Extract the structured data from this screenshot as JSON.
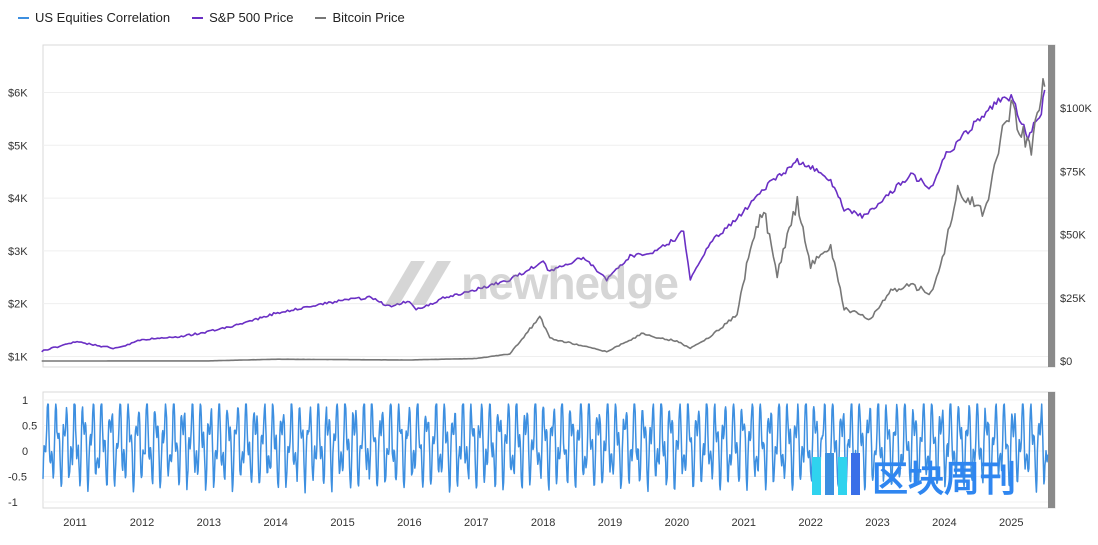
{
  "legend": [
    {
      "label": "US Equities Correlation",
      "color": "#3d8fe0"
    },
    {
      "label": "S&P 500 Price",
      "color": "#6a2fc4"
    },
    {
      "label": "Bitcoin Price",
      "color": "#777777"
    }
  ],
  "watermark": {
    "text": "newhedge",
    "text2": "区块周刊"
  },
  "chart_data": [
    {
      "type": "line",
      "title": "",
      "y_left_ticks": [
        "$1K",
        "$2K",
        "$3K",
        "$4K",
        "$5K",
        "$6K"
      ],
      "y_right_ticks": [
        "$0",
        "$25K",
        "$50K",
        "$75K",
        "$100K"
      ],
      "y_left_range": [
        800,
        6900
      ],
      "y_right_range": [
        0,
        125000
      ],
      "series": [
        {
          "name": "S&P 500 Price",
          "axis": "left",
          "color": "#6a2fc4",
          "x": [
            2010.5,
            2011.0,
            2011.6,
            2012.0,
            2012.5,
            2013.0,
            2013.5,
            2014.0,
            2014.5,
            2015.0,
            2015.4,
            2015.7,
            2016.0,
            2016.1,
            2016.5,
            2017.0,
            2017.5,
            2018.0,
            2018.1,
            2018.6,
            2018.95,
            2019.3,
            2019.7,
            2020.0,
            2020.1,
            2020.2,
            2020.5,
            2020.9,
            2021.3,
            2021.8,
            2022.0,
            2022.3,
            2022.5,
            2022.8,
            2023.1,
            2023.5,
            2023.8,
            2024.0,
            2024.5,
            2024.9,
            2025.0,
            2025.25,
            2025.45,
            2025.5
          ],
          "values": [
            1100,
            1280,
            1150,
            1320,
            1360,
            1470,
            1620,
            1820,
            1950,
            2060,
            2120,
            1950,
            2050,
            1880,
            2100,
            2270,
            2450,
            2800,
            2600,
            2880,
            2450,
            2900,
            3000,
            3250,
            3380,
            2450,
            3150,
            3620,
            4180,
            4700,
            4600,
            4350,
            3800,
            3650,
            4000,
            4450,
            4200,
            4780,
            5480,
            5950,
            5900,
            5150,
            5650,
            6050
          ]
        },
        {
          "name": "Bitcoin Price",
          "axis": "right",
          "color": "#777777",
          "x": [
            2010.5,
            2013.0,
            2014.0,
            2016.0,
            2017.0,
            2017.5,
            2017.95,
            2018.1,
            2018.5,
            2018.95,
            2019.5,
            2019.7,
            2020.0,
            2020.2,
            2020.5,
            2020.9,
            2021.1,
            2021.3,
            2021.5,
            2021.8,
            2022.0,
            2022.3,
            2022.5,
            2022.9,
            2023.2,
            2023.5,
            2023.8,
            2024.0,
            2024.2,
            2024.6,
            2024.9,
            2025.0,
            2025.3,
            2025.45,
            2025.5
          ],
          "values": [
            0,
            50,
            700,
            400,
            1000,
            2800,
            17500,
            9000,
            6500,
            3700,
            11000,
            9000,
            8000,
            5000,
            9500,
            18500,
            45000,
            60000,
            34000,
            63000,
            38000,
            46000,
            21000,
            16500,
            28000,
            30000,
            27000,
            43000,
            68000,
            58000,
            96000,
            100000,
            83000,
            108000,
            108500
          ]
        }
      ]
    },
    {
      "type": "line",
      "title": "",
      "y_ticks": [
        "1",
        "0.5",
        "0",
        "-0.5",
        "-1"
      ],
      "y_range": [
        -1,
        1
      ],
      "x_ticks": [
        "2011",
        "2012",
        "2013",
        "2014",
        "2015",
        "2016",
        "2017",
        "2018",
        "2019",
        "2020",
        "2021",
        "2022",
        "2023",
        "2024",
        "2025"
      ],
      "x_range": [
        2010.52,
        2025.55
      ],
      "series": [
        {
          "name": "US Equities Correlation",
          "color": "#3d8fe0",
          "cycle_years": 0.135,
          "range": [
            -0.95,
            0.92
          ]
        }
      ]
    }
  ]
}
